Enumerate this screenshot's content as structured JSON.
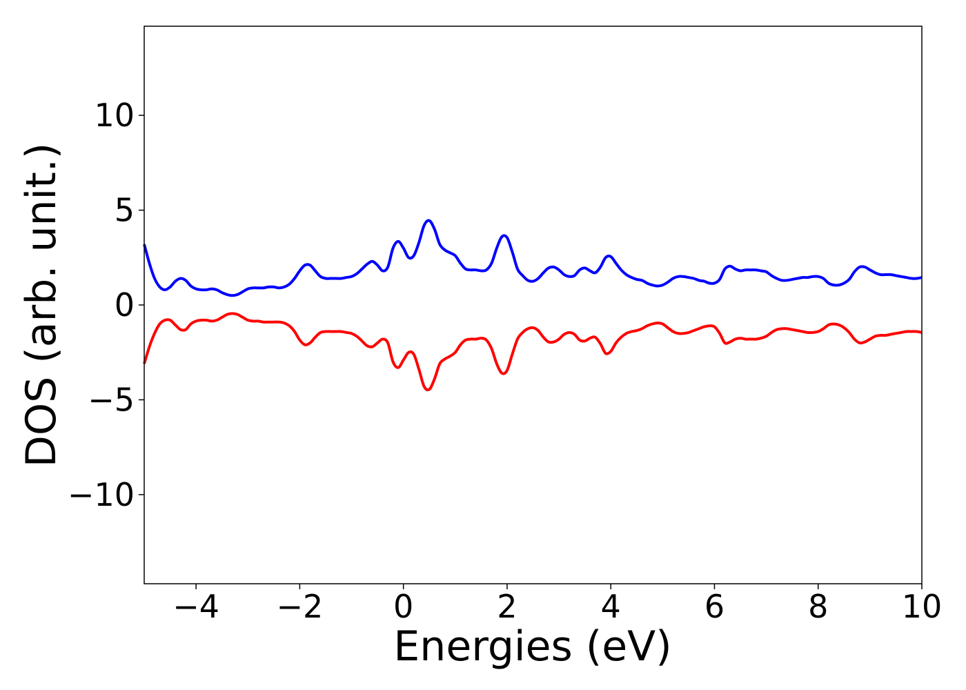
{
  "chart_data": {
    "type": "line",
    "title": "",
    "xlabel": "Energies (eV)",
    "ylabel": "DOS (arb. unit.)",
    "xlim": [
      -5,
      10
    ],
    "ylim": [
      -14.7,
      14.7
    ],
    "xticks": [
      -4,
      -2,
      0,
      2,
      4,
      6,
      8,
      10
    ],
    "xtick_labels": [
      "−4",
      "−2",
      "0",
      "2",
      "4",
      "6",
      "8",
      "10"
    ],
    "yticks": [
      -10,
      -5,
      0,
      5,
      10
    ],
    "ytick_labels": [
      "−10",
      "−5",
      "0",
      "5",
      "10"
    ],
    "grid": false,
    "legend": "none",
    "series": [
      {
        "color": "#0000ff",
        "x": [
          -5.0,
          -4.9,
          -4.8,
          -4.7,
          -4.6,
          -4.5,
          -4.4,
          -4.3,
          -4.2,
          -4.1,
          -4.0,
          -3.9,
          -3.8,
          -3.7,
          -3.6,
          -3.5,
          -3.4,
          -3.3,
          -3.2,
          -3.1,
          -3.0,
          -2.9,
          -2.8,
          -2.7,
          -2.6,
          -2.5,
          -2.4,
          -2.3,
          -2.2,
          -2.1,
          -2.0,
          -1.9,
          -1.8,
          -1.7,
          -1.6,
          -1.5,
          -1.4,
          -1.3,
          -1.2,
          -1.1,
          -1.0,
          -0.9,
          -0.8,
          -0.7,
          -0.6,
          -0.5,
          -0.4,
          -0.3,
          -0.2,
          -0.1,
          0.0,
          0.1,
          0.2,
          0.3,
          0.4,
          0.5,
          0.6,
          0.7,
          0.8,
          0.9,
          1.0,
          1.1,
          1.2,
          1.3,
          1.4,
          1.5,
          1.6,
          1.7,
          1.8,
          1.9,
          2.0,
          2.1,
          2.2,
          2.3,
          2.4,
          2.5,
          2.6,
          2.7,
          2.8,
          2.9,
          3.0,
          3.1,
          3.2,
          3.3,
          3.4,
          3.5,
          3.6,
          3.7,
          3.8,
          3.9,
          4.0,
          4.1,
          4.2,
          4.3,
          4.4,
          4.5,
          4.6,
          4.7,
          4.8,
          4.9,
          5.0,
          5.1,
          5.2,
          5.3,
          5.4,
          5.5,
          5.6,
          5.7,
          5.8,
          5.9,
          6.0,
          6.1,
          6.2,
          6.3,
          6.4,
          6.5,
          6.6,
          6.7,
          6.8,
          6.9,
          7.0,
          7.1,
          7.2,
          7.3,
          7.4,
          7.5,
          7.6,
          7.7,
          7.8,
          7.9,
          8.0,
          8.1,
          8.2,
          8.3,
          8.4,
          8.5,
          8.6,
          8.7,
          8.8,
          8.9,
          9.0,
          9.1,
          9.2,
          9.3,
          9.4,
          9.5,
          9.6,
          9.7,
          9.8,
          9.9,
          10.0
        ],
        "y": [
          3.2,
          2.2,
          1.4,
          0.95,
          0.8,
          0.95,
          1.25,
          1.4,
          1.3,
          1.0,
          0.85,
          0.8,
          0.8,
          0.85,
          0.8,
          0.65,
          0.55,
          0.5,
          0.55,
          0.7,
          0.85,
          0.9,
          0.9,
          0.9,
          0.95,
          0.95,
          0.9,
          0.95,
          1.1,
          1.4,
          1.8,
          2.1,
          2.1,
          1.8,
          1.5,
          1.4,
          1.4,
          1.4,
          1.4,
          1.45,
          1.5,
          1.65,
          1.9,
          2.15,
          2.3,
          2.1,
          1.8,
          2.0,
          3.0,
          3.35,
          3.0,
          2.5,
          2.6,
          3.3,
          4.2,
          4.45,
          4.0,
          3.2,
          2.9,
          2.75,
          2.6,
          2.2,
          1.9,
          1.85,
          1.85,
          1.8,
          1.85,
          2.2,
          3.0,
          3.6,
          3.55,
          2.8,
          1.9,
          1.55,
          1.3,
          1.25,
          1.4,
          1.7,
          1.95,
          2.0,
          1.85,
          1.6,
          1.5,
          1.55,
          1.85,
          1.95,
          1.8,
          1.7,
          2.0,
          2.5,
          2.55,
          2.2,
          1.85,
          1.6,
          1.45,
          1.35,
          1.3,
          1.15,
          1.05,
          1.0,
          1.05,
          1.2,
          1.4,
          1.5,
          1.5,
          1.45,
          1.4,
          1.3,
          1.25,
          1.15,
          1.15,
          1.35,
          1.9,
          2.05,
          1.9,
          1.8,
          1.85,
          1.85,
          1.85,
          1.8,
          1.75,
          1.55,
          1.4,
          1.3,
          1.3,
          1.35,
          1.4,
          1.45,
          1.45,
          1.5,
          1.5,
          1.4,
          1.15,
          1.05,
          1.05,
          1.15,
          1.35,
          1.75,
          2.0,
          2.0,
          1.85,
          1.7,
          1.6,
          1.6,
          1.6,
          1.55,
          1.5,
          1.45,
          1.4,
          1.4,
          1.45
        ]
      },
      {
        "color": "#ff0000",
        "x": [
          -5.0,
          -4.9,
          -4.8,
          -4.7,
          -4.6,
          -4.5,
          -4.4,
          -4.3,
          -4.2,
          -4.1,
          -4.0,
          -3.9,
          -3.8,
          -3.7,
          -3.6,
          -3.5,
          -3.4,
          -3.3,
          -3.2,
          -3.1,
          -3.0,
          -2.9,
          -2.8,
          -2.7,
          -2.6,
          -2.5,
          -2.4,
          -2.3,
          -2.2,
          -2.1,
          -2.0,
          -1.9,
          -1.8,
          -1.7,
          -1.6,
          -1.5,
          -1.4,
          -1.3,
          -1.2,
          -1.1,
          -1.0,
          -0.9,
          -0.8,
          -0.7,
          -0.6,
          -0.5,
          -0.4,
          -0.3,
          -0.2,
          -0.1,
          0.0,
          0.1,
          0.2,
          0.3,
          0.4,
          0.5,
          0.6,
          0.7,
          0.8,
          0.9,
          1.0,
          1.1,
          1.2,
          1.3,
          1.4,
          1.5,
          1.6,
          1.7,
          1.8,
          1.9,
          2.0,
          2.1,
          2.2,
          2.3,
          2.4,
          2.5,
          2.6,
          2.7,
          2.8,
          2.9,
          3.0,
          3.1,
          3.2,
          3.3,
          3.4,
          3.5,
          3.6,
          3.7,
          3.8,
          3.9,
          4.0,
          4.1,
          4.2,
          4.3,
          4.4,
          4.5,
          4.6,
          4.7,
          4.8,
          4.9,
          5.0,
          5.1,
          5.2,
          5.3,
          5.4,
          5.5,
          5.6,
          5.7,
          5.8,
          5.9,
          6.0,
          6.1,
          6.2,
          6.3,
          6.4,
          6.5,
          6.6,
          6.7,
          6.8,
          6.9,
          7.0,
          7.1,
          7.2,
          7.3,
          7.4,
          7.5,
          7.6,
          7.7,
          7.8,
          7.9,
          8.0,
          8.1,
          8.2,
          8.3,
          8.4,
          8.5,
          8.6,
          8.7,
          8.8,
          8.9,
          9.0,
          9.1,
          9.2,
          9.3,
          9.4,
          9.5,
          9.6,
          9.7,
          9.8,
          9.9,
          10.0
        ],
        "y": [
          -3.1,
          -2.2,
          -1.5,
          -1.0,
          -0.8,
          -0.8,
          -1.05,
          -1.3,
          -1.3,
          -1.0,
          -0.85,
          -0.8,
          -0.8,
          -0.85,
          -0.8,
          -0.65,
          -0.5,
          -0.45,
          -0.5,
          -0.65,
          -0.8,
          -0.85,
          -0.85,
          -0.9,
          -0.9,
          -0.9,
          -0.9,
          -0.95,
          -1.1,
          -1.4,
          -1.85,
          -2.1,
          -2.0,
          -1.7,
          -1.45,
          -1.4,
          -1.4,
          -1.4,
          -1.4,
          -1.45,
          -1.5,
          -1.65,
          -1.9,
          -2.15,
          -2.2,
          -2.0,
          -1.8,
          -2.0,
          -3.0,
          -3.3,
          -2.9,
          -2.5,
          -2.6,
          -3.4,
          -4.3,
          -4.45,
          -3.9,
          -3.1,
          -2.85,
          -2.7,
          -2.5,
          -2.1,
          -1.85,
          -1.8,
          -1.8,
          -1.75,
          -1.85,
          -2.3,
          -3.1,
          -3.6,
          -3.45,
          -2.6,
          -1.8,
          -1.45,
          -1.25,
          -1.2,
          -1.35,
          -1.7,
          -1.95,
          -1.95,
          -1.8,
          -1.55,
          -1.45,
          -1.55,
          -1.85,
          -1.9,
          -1.75,
          -1.7,
          -2.05,
          -2.55,
          -2.45,
          -2.0,
          -1.7,
          -1.5,
          -1.4,
          -1.35,
          -1.25,
          -1.1,
          -1.0,
          -0.95,
          -1.0,
          -1.2,
          -1.4,
          -1.5,
          -1.5,
          -1.45,
          -1.35,
          -1.25,
          -1.15,
          -1.1,
          -1.15,
          -1.5,
          -2.0,
          -1.95,
          -1.8,
          -1.75,
          -1.8,
          -1.8,
          -1.8,
          -1.75,
          -1.65,
          -1.45,
          -1.3,
          -1.25,
          -1.25,
          -1.3,
          -1.35,
          -1.4,
          -1.45,
          -1.45,
          -1.4,
          -1.25,
          -1.05,
          -1.0,
          -1.05,
          -1.2,
          -1.45,
          -1.8,
          -2.0,
          -1.95,
          -1.8,
          -1.65,
          -1.6,
          -1.6,
          -1.55,
          -1.5,
          -1.45,
          -1.4,
          -1.4,
          -1.4,
          -1.45
        ]
      }
    ]
  }
}
